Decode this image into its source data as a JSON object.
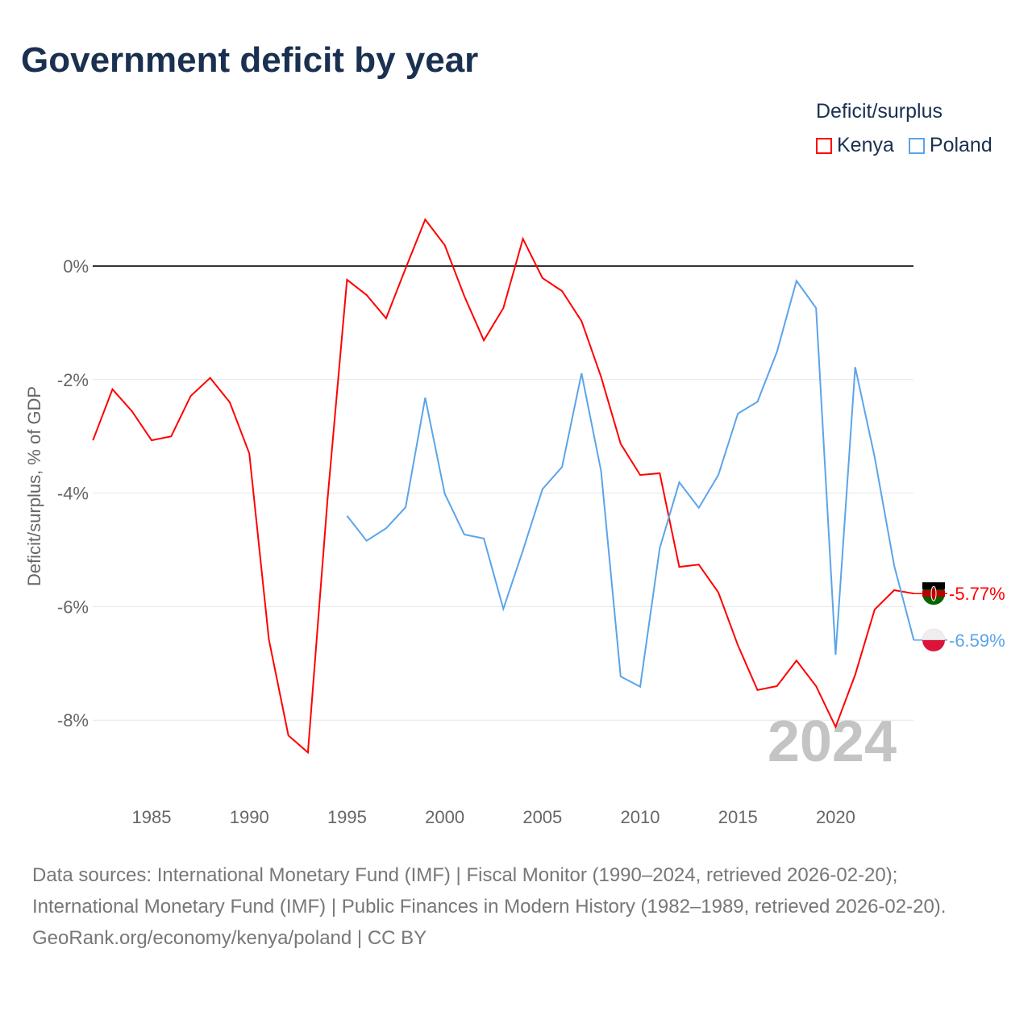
{
  "title": "Government deficit by year",
  "legend": {
    "title": "Deficit/surplus",
    "items": [
      {
        "name": "Kenya",
        "color": "#ff0000"
      },
      {
        "name": "Poland",
        "color": "#5ba4ea"
      }
    ]
  },
  "chart_data": {
    "type": "line",
    "title": "Government deficit by year",
    "ylabel": "Deficit/surplus, % of GDP",
    "xlabel": "",
    "ylim": [
      -9.2,
      1.2
    ],
    "xlim": [
      1982,
      2024
    ],
    "yticks": [
      {
        "v": 0,
        "label": "0%"
      },
      {
        "v": -2,
        "label": "-2%"
      },
      {
        "v": -4,
        "label": "-4%"
      },
      {
        "v": -6,
        "label": "-6%"
      },
      {
        "v": -8,
        "label": "-8%"
      }
    ],
    "xticks": [
      1985,
      1990,
      1995,
      2000,
      2005,
      2010,
      2015,
      2020
    ],
    "year_watermark": "2024",
    "series": [
      {
        "name": "Kenya",
        "color": "#ff0000",
        "end_label": "-5.77%",
        "x_start": 1982,
        "values": [
          -3.07,
          -2.17,
          -2.56,
          -3.07,
          -3.0,
          -2.29,
          -1.97,
          -2.4,
          -3.3,
          -6.58,
          -8.27,
          -8.57,
          -4.12,
          -0.24,
          -0.51,
          -0.92,
          -0.04,
          0.82,
          0.37,
          -0.53,
          -1.31,
          -0.74,
          0.48,
          -0.21,
          -0.44,
          -0.97,
          -1.95,
          -3.13,
          -3.68,
          -3.65,
          -5.3,
          -5.26,
          -5.75,
          -6.68,
          -7.47,
          -7.4,
          -6.95,
          -7.4,
          -8.12,
          -7.2,
          -6.05,
          -5.71,
          -5.77
        ]
      },
      {
        "name": "Poland",
        "color": "#5ba4ea",
        "end_label": "-6.59%",
        "x_start": 1995,
        "values": [
          -4.4,
          -4.84,
          -4.62,
          -4.25,
          -2.32,
          -4.01,
          -4.73,
          -4.8,
          -6.04,
          -5.01,
          -3.93,
          -3.54,
          -1.89,
          -3.61,
          -7.23,
          -7.41,
          -4.97,
          -3.81,
          -4.26,
          -3.68,
          -2.6,
          -2.39,
          -1.51,
          -0.26,
          -0.74,
          -6.85,
          -1.78,
          -3.37,
          -5.28,
          -6.59
        ]
      }
    ]
  },
  "source": {
    "line1": "Data sources: International Monetary Fund (IMF) | Fiscal Monitor (1990–2024, retrieved 2026-02-20); International Monetary Fund (IMF) | Public Finances in Modern History (1982–1989, retrieved 2026-02-20).",
    "line2": "GeoRank.org/economy/kenya/poland | CC BY"
  }
}
